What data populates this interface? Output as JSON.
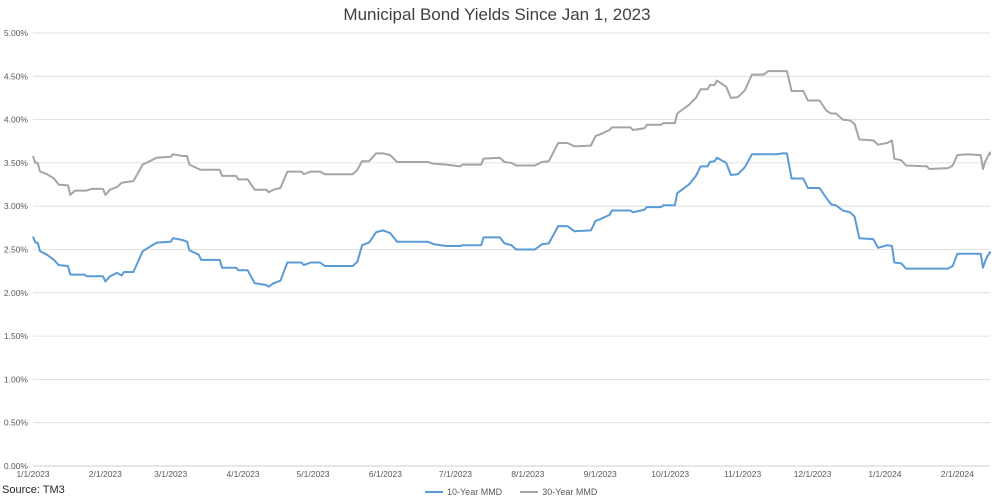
{
  "chart_data": {
    "type": "line",
    "title": "Municipal Bond Yields Since Jan 1, 2023",
    "source": "Source: TM3",
    "xlabel": "",
    "ylabel": "",
    "ylim": [
      0.0,
      5.0
    ],
    "y_ticks": [
      "0.00%",
      "0.50%",
      "1.00%",
      "1.50%",
      "2.00%",
      "2.50%",
      "3.00%",
      "3.50%",
      "4.00%",
      "4.50%",
      "5.00%"
    ],
    "x_ticks": [
      "1/1/2023",
      "2/1/2023",
      "3/1/2023",
      "4/1/2023",
      "5/1/2023",
      "6/1/2023",
      "7/1/2023",
      "8/1/2023",
      "9/1/2023",
      "10/1/2023",
      "11/1/2023",
      "12/1/2023",
      "1/1/2024",
      "2/1/2024"
    ],
    "xlim": [
      "2023-01-01",
      "2024-02-15"
    ],
    "grid": "horizontal",
    "legend_position": "bottom",
    "series": [
      {
        "name": "10-Year MMD",
        "color": "#5B9BD5",
        "points": [
          [
            "2023-01-01",
            2.65
          ],
          [
            "2023-01-02",
            2.58
          ],
          [
            "2023-01-03",
            2.58
          ],
          [
            "2023-01-04",
            2.48
          ],
          [
            "2023-01-07",
            2.44
          ],
          [
            "2023-01-10",
            2.38
          ],
          [
            "2023-01-12",
            2.32
          ],
          [
            "2023-01-16",
            2.31
          ],
          [
            "2023-01-17",
            2.21
          ],
          [
            "2023-01-23",
            2.21
          ],
          [
            "2023-01-24",
            2.19
          ],
          [
            "2023-01-31",
            2.19
          ],
          [
            "2023-02-01",
            2.13
          ],
          [
            "2023-02-03",
            2.19
          ],
          [
            "2023-02-06",
            2.23
          ],
          [
            "2023-02-08",
            2.2
          ],
          [
            "2023-02-09",
            2.24
          ],
          [
            "2023-02-13",
            2.24
          ],
          [
            "2023-02-17",
            2.48
          ],
          [
            "2023-02-20",
            2.53
          ],
          [
            "2023-02-23",
            2.58
          ],
          [
            "2023-03-01",
            2.59
          ],
          [
            "2023-03-02",
            2.63
          ],
          [
            "2023-03-06",
            2.61
          ],
          [
            "2023-03-08",
            2.59
          ],
          [
            "2023-03-09",
            2.49
          ],
          [
            "2023-03-13",
            2.44
          ],
          [
            "2023-03-14",
            2.38
          ],
          [
            "2023-03-22",
            2.38
          ],
          [
            "2023-03-23",
            2.29
          ],
          [
            "2023-03-29",
            2.29
          ],
          [
            "2023-03-30",
            2.26
          ],
          [
            "2023-04-03",
            2.26
          ],
          [
            "2023-04-06",
            2.11
          ],
          [
            "2023-04-11",
            2.09
          ],
          [
            "2023-04-12",
            2.07
          ],
          [
            "2023-04-14",
            2.11
          ],
          [
            "2023-04-17",
            2.14
          ],
          [
            "2023-04-20",
            2.35
          ],
          [
            "2023-04-26",
            2.35
          ],
          [
            "2023-04-27",
            2.32
          ],
          [
            "2023-04-30",
            2.35
          ],
          [
            "2023-05-04",
            2.35
          ],
          [
            "2023-05-06",
            2.31
          ],
          [
            "2023-05-18",
            2.31
          ],
          [
            "2023-05-20",
            2.36
          ],
          [
            "2023-05-22",
            2.55
          ],
          [
            "2023-05-25",
            2.58
          ],
          [
            "2023-05-28",
            2.7
          ],
          [
            "2023-05-31",
            2.72
          ],
          [
            "2023-06-03",
            2.69
          ],
          [
            "2023-06-06",
            2.59
          ],
          [
            "2023-06-19",
            2.59
          ],
          [
            "2023-06-22",
            2.56
          ],
          [
            "2023-06-27",
            2.54
          ],
          [
            "2023-07-03",
            2.54
          ],
          [
            "2023-07-04",
            2.55
          ],
          [
            "2023-07-12",
            2.55
          ],
          [
            "2023-07-13",
            2.64
          ],
          [
            "2023-07-20",
            2.64
          ],
          [
            "2023-07-22",
            2.57
          ],
          [
            "2023-07-25",
            2.55
          ],
          [
            "2023-07-27",
            2.5
          ],
          [
            "2023-08-04",
            2.5
          ],
          [
            "2023-08-07",
            2.56
          ],
          [
            "2023-08-10",
            2.57
          ],
          [
            "2023-08-14",
            2.77
          ],
          [
            "2023-08-18",
            2.77
          ],
          [
            "2023-08-21",
            2.71
          ],
          [
            "2023-08-28",
            2.72
          ],
          [
            "2023-08-30",
            2.83
          ],
          [
            "2023-09-01",
            2.85
          ],
          [
            "2023-09-05",
            2.9
          ],
          [
            "2023-09-06",
            2.95
          ],
          [
            "2023-09-14",
            2.95
          ],
          [
            "2023-09-15",
            2.93
          ],
          [
            "2023-09-20",
            2.96
          ],
          [
            "2023-09-21",
            2.99
          ],
          [
            "2023-09-27",
            2.99
          ],
          [
            "2023-09-28",
            3.01
          ],
          [
            "2023-10-03",
            3.01
          ],
          [
            "2023-10-04",
            3.15
          ],
          [
            "2023-10-09",
            3.25
          ],
          [
            "2023-10-12",
            3.35
          ],
          [
            "2023-10-14",
            3.46
          ],
          [
            "2023-10-17",
            3.46
          ],
          [
            "2023-10-18",
            3.51
          ],
          [
            "2023-10-20",
            3.52
          ],
          [
            "2023-10-21",
            3.56
          ],
          [
            "2023-10-25",
            3.5
          ],
          [
            "2023-10-27",
            3.36
          ],
          [
            "2023-10-30",
            3.37
          ],
          [
            "2023-11-02",
            3.45
          ],
          [
            "2023-11-05",
            3.6
          ],
          [
            "2023-11-16",
            3.6
          ],
          [
            "2023-11-18",
            3.61
          ],
          [
            "2023-11-20",
            3.61
          ],
          [
            "2023-11-22",
            3.32
          ],
          [
            "2023-11-27",
            3.32
          ],
          [
            "2023-11-29",
            3.21
          ],
          [
            "2023-12-04",
            3.21
          ],
          [
            "2023-12-07",
            3.09
          ],
          [
            "2023-12-09",
            3.02
          ],
          [
            "2023-12-11",
            3.01
          ],
          [
            "2023-12-14",
            2.95
          ],
          [
            "2023-12-17",
            2.93
          ],
          [
            "2023-12-19",
            2.88
          ],
          [
            "2023-12-21",
            2.63
          ],
          [
            "2023-12-27",
            2.62
          ],
          [
            "2023-12-29",
            2.52
          ],
          [
            "2024-01-02",
            2.55
          ],
          [
            "2024-01-04",
            2.54
          ],
          [
            "2024-01-05",
            2.35
          ],
          [
            "2024-01-08",
            2.34
          ],
          [
            "2024-01-10",
            2.28
          ],
          [
            "2024-01-28",
            2.28
          ],
          [
            "2024-01-30",
            2.31
          ],
          [
            "2024-02-01",
            2.45
          ],
          [
            "2024-02-08",
            2.45
          ],
          [
            "2024-02-11",
            2.45
          ],
          [
            "2024-02-12",
            2.29
          ],
          [
            "2024-02-13",
            2.37
          ],
          [
            "2024-02-14",
            2.43
          ],
          [
            "2024-02-14",
            2.43
          ],
          [
            "2024-02-15",
            2.47
          ],
          [
            "2024-02-15",
            2.45
          ]
        ]
      },
      {
        "name": "30-Year MMD",
        "color": "#A5A5A5",
        "points": [
          [
            "2023-01-01",
            3.58
          ],
          [
            "2023-01-02",
            3.5
          ],
          [
            "2023-01-03",
            3.5
          ],
          [
            "2023-01-04",
            3.4
          ],
          [
            "2023-01-07",
            3.37
          ],
          [
            "2023-01-10",
            3.32
          ],
          [
            "2023-01-12",
            3.25
          ],
          [
            "2023-01-16",
            3.24
          ],
          [
            "2023-01-17",
            3.13
          ],
          [
            "2023-01-19",
            3.18
          ],
          [
            "2023-01-24",
            3.18
          ],
          [
            "2023-01-26",
            3.2
          ],
          [
            "2023-01-31",
            3.2
          ],
          [
            "2023-02-01",
            3.13
          ],
          [
            "2023-02-03",
            3.19
          ],
          [
            "2023-02-06",
            3.22
          ],
          [
            "2023-02-08",
            3.27
          ],
          [
            "2023-02-10",
            3.28
          ],
          [
            "2023-02-13",
            3.29
          ],
          [
            "2023-02-17",
            3.48
          ],
          [
            "2023-02-20",
            3.52
          ],
          [
            "2023-02-23",
            3.56
          ],
          [
            "2023-03-01",
            3.57
          ],
          [
            "2023-03-02",
            3.6
          ],
          [
            "2023-03-06",
            3.58
          ],
          [
            "2023-03-08",
            3.58
          ],
          [
            "2023-03-09",
            3.48
          ],
          [
            "2023-03-13",
            3.43
          ],
          [
            "2023-03-14",
            3.42
          ],
          [
            "2023-03-22",
            3.42
          ],
          [
            "2023-03-23",
            3.35
          ],
          [
            "2023-03-29",
            3.35
          ],
          [
            "2023-03-30",
            3.31
          ],
          [
            "2023-04-03",
            3.31
          ],
          [
            "2023-04-06",
            3.19
          ],
          [
            "2023-04-11",
            3.19
          ],
          [
            "2023-04-12",
            3.16
          ],
          [
            "2023-04-14",
            3.19
          ],
          [
            "2023-04-17",
            3.21
          ],
          [
            "2023-04-20",
            3.4
          ],
          [
            "2023-04-26",
            3.4
          ],
          [
            "2023-04-27",
            3.37
          ],
          [
            "2023-04-30",
            3.4
          ],
          [
            "2023-05-04",
            3.4
          ],
          [
            "2023-05-06",
            3.37
          ],
          [
            "2023-05-18",
            3.37
          ],
          [
            "2023-05-20",
            3.42
          ],
          [
            "2023-05-22",
            3.52
          ],
          [
            "2023-05-25",
            3.52
          ],
          [
            "2023-05-28",
            3.61
          ],
          [
            "2023-05-31",
            3.61
          ],
          [
            "2023-06-03",
            3.59
          ],
          [
            "2023-06-06",
            3.51
          ],
          [
            "2023-06-19",
            3.51
          ],
          [
            "2023-06-22",
            3.49
          ],
          [
            "2023-06-27",
            3.48
          ],
          [
            "2023-07-03",
            3.46
          ],
          [
            "2023-07-04",
            3.48
          ],
          [
            "2023-07-12",
            3.48
          ],
          [
            "2023-07-13",
            3.55
          ],
          [
            "2023-07-20",
            3.56
          ],
          [
            "2023-07-22",
            3.51
          ],
          [
            "2023-07-25",
            3.5
          ],
          [
            "2023-07-27",
            3.47
          ],
          [
            "2023-08-04",
            3.47
          ],
          [
            "2023-08-07",
            3.51
          ],
          [
            "2023-08-10",
            3.52
          ],
          [
            "2023-08-14",
            3.73
          ],
          [
            "2023-08-18",
            3.73
          ],
          [
            "2023-08-21",
            3.69
          ],
          [
            "2023-08-28",
            3.7
          ],
          [
            "2023-08-30",
            3.81
          ],
          [
            "2023-09-01",
            3.83
          ],
          [
            "2023-09-05",
            3.88
          ],
          [
            "2023-09-06",
            3.91
          ],
          [
            "2023-09-14",
            3.91
          ],
          [
            "2023-09-15",
            3.88
          ],
          [
            "2023-09-20",
            3.9
          ],
          [
            "2023-09-21",
            3.94
          ],
          [
            "2023-09-27",
            3.94
          ],
          [
            "2023-09-28",
            3.96
          ],
          [
            "2023-10-03",
            3.96
          ],
          [
            "2023-10-04",
            4.07
          ],
          [
            "2023-10-09",
            4.17
          ],
          [
            "2023-10-12",
            4.25
          ],
          [
            "2023-10-14",
            4.35
          ],
          [
            "2023-10-17",
            4.35
          ],
          [
            "2023-10-18",
            4.4
          ],
          [
            "2023-10-20",
            4.4
          ],
          [
            "2023-10-21",
            4.45
          ],
          [
            "2023-10-25",
            4.38
          ],
          [
            "2023-10-27",
            4.25
          ],
          [
            "2023-10-30",
            4.26
          ],
          [
            "2023-11-02",
            4.34
          ],
          [
            "2023-11-05",
            4.52
          ],
          [
            "2023-11-10",
            4.52
          ],
          [
            "2023-11-12",
            4.56
          ],
          [
            "2023-11-20",
            4.56
          ],
          [
            "2023-11-22",
            4.33
          ],
          [
            "2023-11-27",
            4.33
          ],
          [
            "2023-11-29",
            4.22
          ],
          [
            "2023-12-04",
            4.22
          ],
          [
            "2023-12-07",
            4.1
          ],
          [
            "2023-12-09",
            4.07
          ],
          [
            "2023-12-11",
            4.07
          ],
          [
            "2023-12-14",
            4.0
          ],
          [
            "2023-12-17",
            3.99
          ],
          [
            "2023-12-19",
            3.95
          ],
          [
            "2023-12-21",
            3.77
          ],
          [
            "2023-12-27",
            3.76
          ],
          [
            "2023-12-29",
            3.71
          ],
          [
            "2024-01-02",
            3.73
          ],
          [
            "2024-01-04",
            3.76
          ],
          [
            "2024-01-05",
            3.55
          ],
          [
            "2024-01-08",
            3.53
          ],
          [
            "2024-01-10",
            3.47
          ],
          [
            "2024-01-19",
            3.46
          ],
          [
            "2024-01-20",
            3.43
          ],
          [
            "2024-01-28",
            3.44
          ],
          [
            "2024-01-30",
            3.47
          ],
          [
            "2024-02-01",
            3.59
          ],
          [
            "2024-02-05",
            3.6
          ],
          [
            "2024-02-11",
            3.59
          ],
          [
            "2024-02-12",
            3.43
          ],
          [
            "2024-02-13",
            3.52
          ],
          [
            "2024-02-14",
            3.57
          ],
          [
            "2024-02-15",
            3.62
          ],
          [
            "2024-02-15",
            3.59
          ]
        ]
      }
    ]
  }
}
